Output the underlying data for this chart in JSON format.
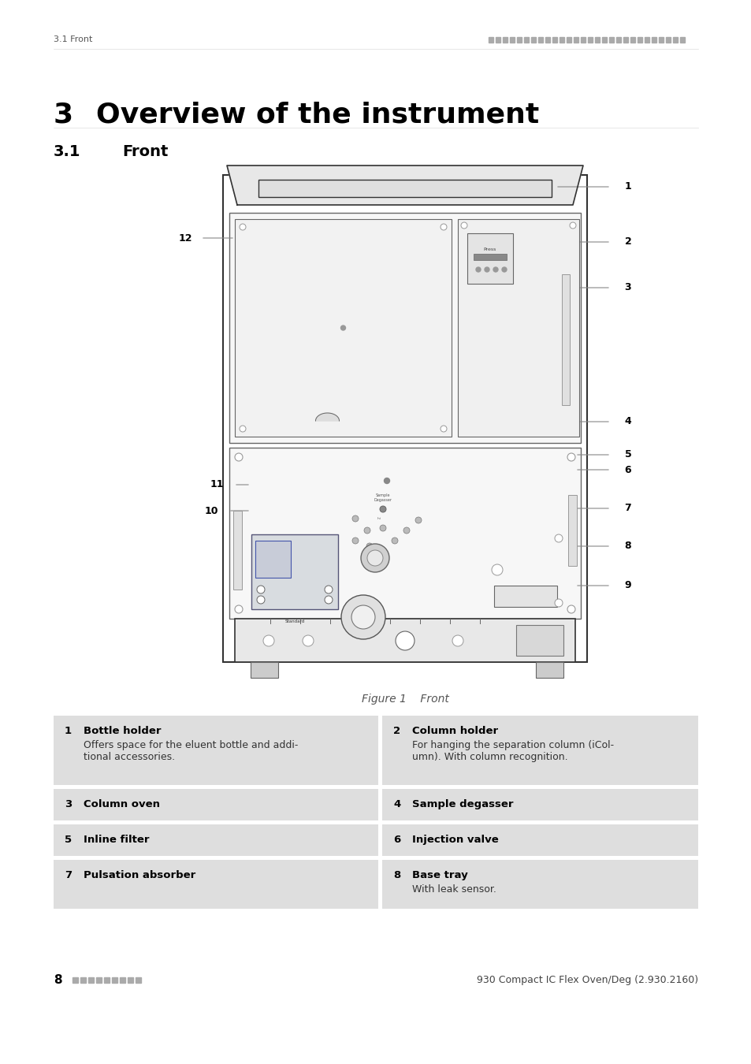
{
  "header_left": "3.1 Front",
  "header_right_color": "#aaaaaa",
  "title_number": "3",
  "title_text": "Overview of the instrument",
  "subtitle_number": "3.1",
  "subtitle_text": "Front",
  "figure_caption": "Figure 1    Front",
  "footer_left_number": "8",
  "footer_right": "930 Compact IC Flex Oven/Deg (2.930.2160)",
  "table_bg": "#dedede",
  "table_items": [
    {
      "num": "1",
      "title": "Bottle holder",
      "desc": "Offers space for the eluent bottle and addi-\ntional accessories.",
      "col": 0,
      "row": 0
    },
    {
      "num": "2",
      "title": "Column holder",
      "desc": "For hanging the separation column (iCol-\numn). With column recognition.",
      "col": 1,
      "row": 0
    },
    {
      "num": "3",
      "title": "Column oven",
      "desc": "",
      "col": 0,
      "row": 1
    },
    {
      "num": "4",
      "title": "Sample degasser",
      "desc": "",
      "col": 1,
      "row": 1
    },
    {
      "num": "5",
      "title": "Inline filter",
      "desc": "",
      "col": 0,
      "row": 2
    },
    {
      "num": "6",
      "title": "Injection valve",
      "desc": "",
      "col": 1,
      "row": 2
    },
    {
      "num": "7",
      "title": "Pulsation absorber",
      "desc": "",
      "col": 0,
      "row": 3
    },
    {
      "num": "8",
      "title": "Base tray",
      "desc": "With leak sensor.",
      "col": 1,
      "row": 3
    }
  ]
}
